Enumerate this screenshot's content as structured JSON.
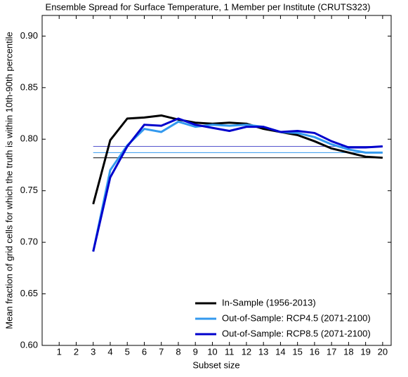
{
  "chart_data": {
    "type": "line",
    "title": "Ensemble Spread for Surface Temperature, 1 Member per Institute (CRUTS323)",
    "x_label": "Subset size",
    "y_label": "Mean fraction of grid cells for which the truth is within 10th-90th percentile",
    "x": [
      3,
      4,
      5,
      6,
      7,
      8,
      9,
      10,
      11,
      12,
      13,
      14,
      15,
      16,
      17,
      18,
      19,
      20
    ],
    "series": [
      {
        "name": "In-Sample (1956-2013)",
        "color": "#000000",
        "values": [
          0.737,
          0.799,
          0.82,
          0.821,
          0.823,
          0.819,
          0.816,
          0.815,
          0.816,
          0.815,
          0.81,
          0.807,
          0.804,
          0.798,
          0.791,
          0.787,
          0.783,
          0.782
        ]
      },
      {
        "name": "Out-of-Sample: RCP4.5 (2071-2100)",
        "color": "#3399ee",
        "values": [
          0.691,
          0.77,
          0.794,
          0.81,
          0.807,
          0.817,
          0.812,
          0.814,
          0.813,
          0.814,
          0.812,
          0.807,
          0.806,
          0.802,
          0.795,
          0.79,
          0.787,
          0.787
        ]
      },
      {
        "name": "Out-of-Sample: RCP8.5 (2071-2100)",
        "color": "#0000cc",
        "values": [
          0.691,
          0.763,
          0.793,
          0.814,
          0.813,
          0.82,
          0.814,
          0.811,
          0.808,
          0.812,
          0.812,
          0.807,
          0.808,
          0.806,
          0.798,
          0.792,
          0.792,
          0.793
        ]
      }
    ],
    "hlines": [
      {
        "value": 0.782,
        "color": "#000000"
      },
      {
        "value": 0.787,
        "color": "#3399ee"
      },
      {
        "value": 0.793,
        "color": "#5555cc"
      }
    ],
    "xlim": [
      0,
      20.5
    ],
    "xticks": [
      1,
      2,
      3,
      4,
      5,
      6,
      7,
      8,
      9,
      10,
      11,
      12,
      13,
      14,
      15,
      16,
      17,
      18,
      19,
      20
    ],
    "ylim": [
      0.6,
      0.92
    ],
    "yticks": [
      {
        "value": 0.6,
        "label": "0.60"
      },
      {
        "value": 0.65,
        "label": "0.65"
      },
      {
        "value": 0.7,
        "label": "0.70"
      },
      {
        "value": 0.75,
        "label": "0.75"
      },
      {
        "value": 0.8,
        "label": "0.80"
      },
      {
        "value": 0.85,
        "label": "0.85"
      },
      {
        "value": 0.9,
        "label": "0.90"
      }
    ],
    "legend": "lower right"
  }
}
